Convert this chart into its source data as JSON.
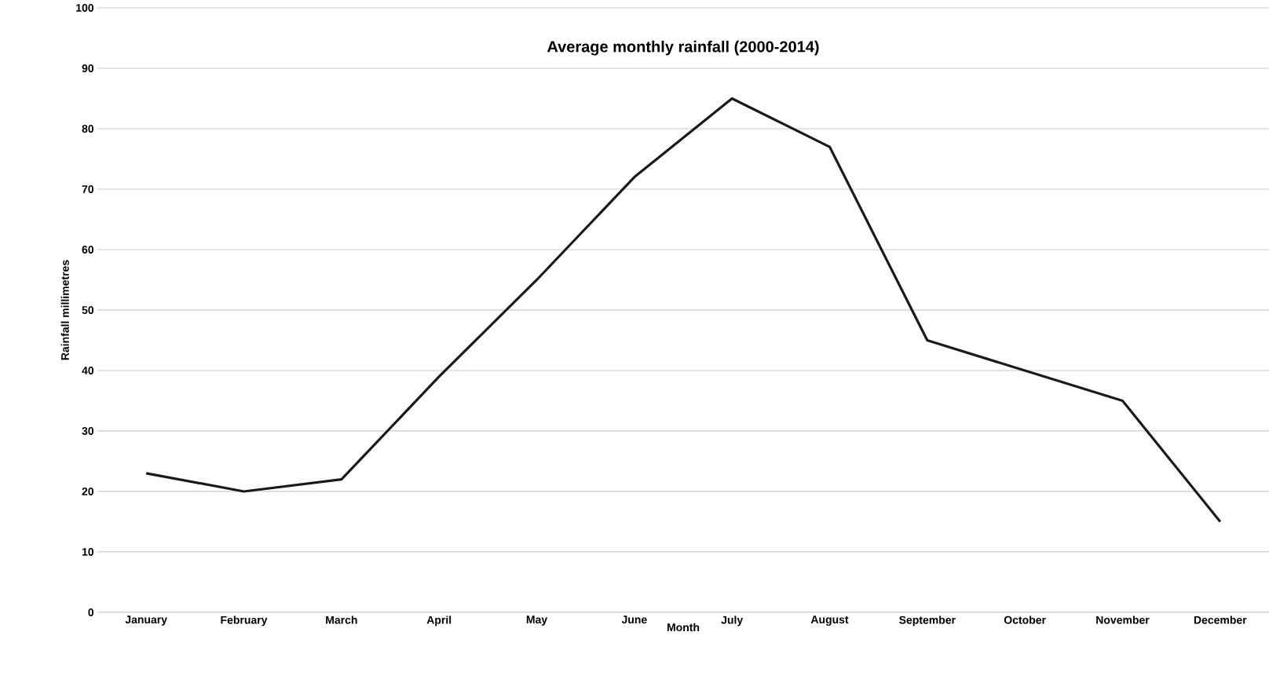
{
  "chart_data": {
    "type": "line",
    "title": "Average monthly rainfall  (2000-2014)",
    "xlabel": "Month",
    "ylabel": "Rainfall millimetres",
    "categories": [
      "January",
      "February",
      "March",
      "April",
      "May",
      "June",
      "July",
      "August",
      "September",
      "October",
      "November",
      "December"
    ],
    "series": [
      {
        "color": "#1a1a1a",
        "values": [
          23,
          20,
          22,
          39,
          55,
          72,
          85,
          77,
          45,
          40,
          35,
          15
        ]
      }
    ],
    "ylim": [
      0,
      100
    ],
    "yticks": [
      0,
      10,
      20,
      30,
      40,
      50,
      60,
      70,
      80,
      90,
      100
    ],
    "grid": "y",
    "marker": "none",
    "line_style": "solid"
  }
}
